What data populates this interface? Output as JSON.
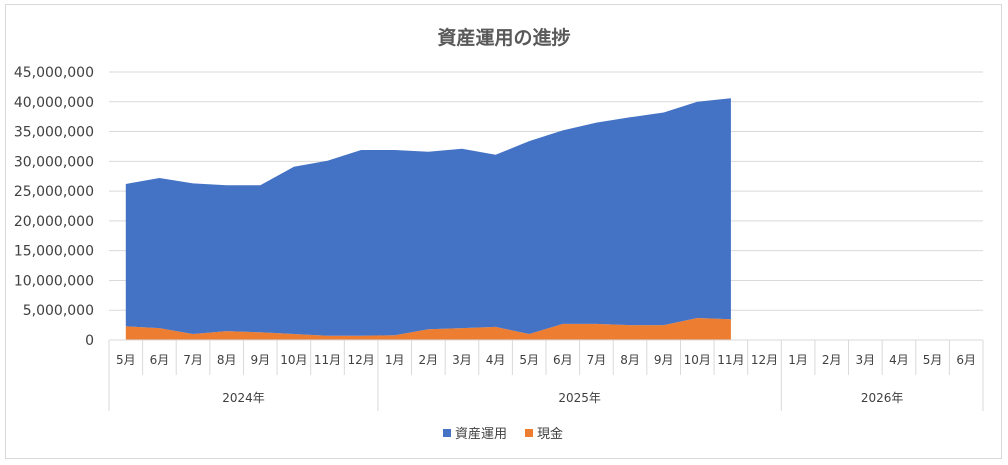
{
  "chart_data": {
    "type": "area",
    "stacked": true,
    "title": "資産運用の進捗",
    "categories": [
      "5月",
      "6月",
      "7月",
      "8月",
      "9月",
      "10月",
      "11月",
      "12月",
      "1月",
      "2月",
      "3月",
      "4月",
      "5月",
      "6月",
      "7月",
      "8月",
      "9月",
      "10月",
      "11月",
      "12月",
      "1月",
      "2月",
      "3月",
      "4月",
      "5月",
      "6月"
    ],
    "year_groups": [
      {
        "label": "2024年",
        "count": 8
      },
      {
        "label": "2025年",
        "count": 12
      },
      {
        "label": "2026年",
        "count": 6
      }
    ],
    "series": [
      {
        "name": "現金",
        "color": "#ED7D31",
        "values": [
          2300000,
          2000000,
          1000000,
          1500000,
          1300000,
          1000000,
          700000,
          700000,
          800000,
          1800000,
          2000000,
          2200000,
          1000000,
          2700000,
          2700000,
          2500000,
          2500000,
          3700000,
          3500000,
          null,
          null,
          null,
          null,
          null,
          null,
          null
        ]
      },
      {
        "name": "資産運用",
        "color": "#4472C4",
        "values": [
          23900000,
          25200000,
          25300000,
          24500000,
          24700000,
          28100000,
          29400000,
          31200000,
          31100000,
          29800000,
          30100000,
          28900000,
          32400000,
          32500000,
          33800000,
          34900000,
          35700000,
          36300000,
          37100000,
          null,
          null,
          null,
          null,
          null,
          null,
          null
        ]
      }
    ],
    "legend_order": [
      "資産運用",
      "現金"
    ],
    "ylim": [
      0,
      45000000
    ],
    "yticks": [
      "0",
      "5,000,000",
      "10,000,000",
      "15,000,000",
      "20,000,000",
      "25,000,000",
      "30,000,000",
      "35,000,000",
      "40,000,000",
      "45,000,000"
    ],
    "grid": true,
    "legend_position": "bottom",
    "xlabel": "",
    "ylabel": ""
  }
}
